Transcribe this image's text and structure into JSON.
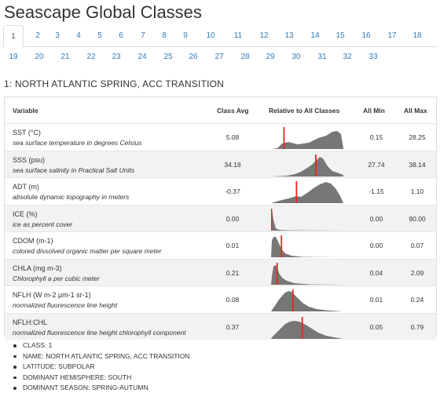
{
  "page": {
    "title": "Seascape Global Classes"
  },
  "tabs": [
    "1",
    "2",
    "3",
    "4",
    "5",
    "6",
    "7",
    "8",
    "9",
    "10",
    "11",
    "12",
    "13",
    "14",
    "15",
    "16",
    "17",
    "18",
    "19",
    "20",
    "21",
    "22",
    "23",
    "24",
    "25",
    "26",
    "27",
    "28",
    "29",
    "30",
    "31",
    "32",
    "33"
  ],
  "active_tab": "1",
  "section": {
    "title": "1: NORTH ATLANTIC SPRING, ACC TRANSITION"
  },
  "table": {
    "headers": {
      "variable": "Variable",
      "class_avg": "Class Avg",
      "relative": "Relative to All Classes",
      "all_min": "All Min",
      "all_max": "All Max"
    },
    "rows": [
      {
        "name": "SST (°C)",
        "desc": "sea surface temperature in degrees Celsius",
        "avg": "5.08",
        "min": "0.15",
        "max": "28.25",
        "marker_fraction": 0.175
      },
      {
        "name": "SSS (psu)",
        "desc": "sea surface salinity in Practical Salt Units",
        "avg": "34.18",
        "min": "27.74",
        "max": "38.14",
        "marker_fraction": 0.62
      },
      {
        "name": "ADT (m)",
        "desc": "absolute dynamic topography in meters",
        "avg": "-0.37",
        "min": "-1.15",
        "max": "1.10",
        "marker_fraction": 0.35
      },
      {
        "name": "ICE (%)",
        "desc": "ice as percent cover",
        "avg": "0.00",
        "min": "0.00",
        "max": "90.00",
        "marker_fraction": 0.0
      },
      {
        "name": "CDOM (m-1)",
        "desc": "colored dissolved organic matter per square meter",
        "avg": "0.01",
        "min": "0.00",
        "max": "0.07",
        "marker_fraction": 0.14
      },
      {
        "name": "CHLA (mg m-3)",
        "desc": "Chlorophyll a per cubic meter",
        "avg": "0.21",
        "min": "0.04",
        "max": "2.09",
        "marker_fraction": 0.08
      },
      {
        "name": "NFLH (W m-2 μm-1 sr-1)",
        "desc": "normalized fluorescence line height",
        "avg": "0.08",
        "min": "0.01",
        "max": "0.24",
        "marker_fraction": 0.3
      },
      {
        "name": "NFLH:CHL",
        "desc": "normalized fluorescence line height chlorophyll component",
        "avg": "0.37",
        "min": "0.05",
        "max": "0.79",
        "marker_fraction": 0.43
      }
    ]
  },
  "details": [
    "CLASS: 1",
    "NAME: NORTH ATLANTIC SPRING, ACC TRANSITION",
    "LATITUDE: SUBPOLAR",
    "DOMINANT HEMISPHERE: SOUTH",
    "DOMINANT SEASON: SPRING-AUTUMN"
  ],
  "colors": {
    "link": "#337ab7",
    "marker": "#e8251f",
    "density_fill": "#777777",
    "row_alt": "#f2f2f2"
  }
}
